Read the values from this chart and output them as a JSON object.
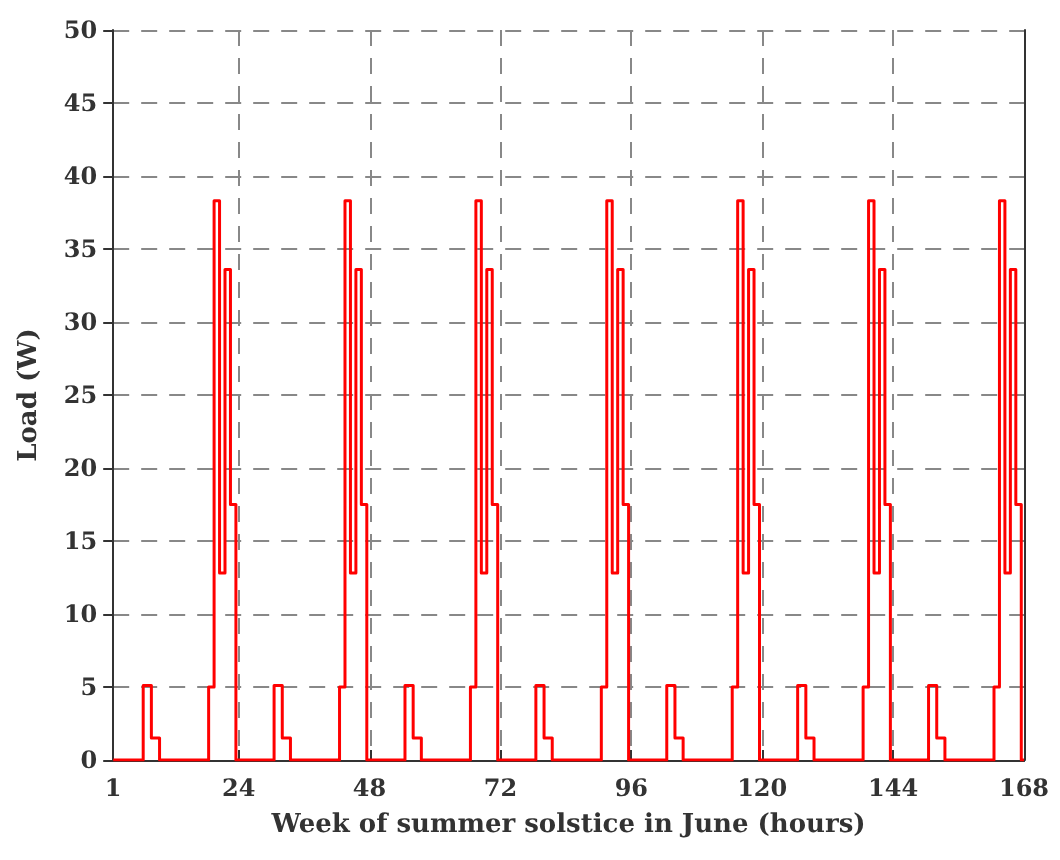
{
  "chart_data": {
    "type": "step",
    "xlabel": "Week of summer solstice in June (hours)",
    "ylabel": "Load (W)",
    "x": [
      1,
      6.5,
      8,
      9.5,
      18.5,
      19.5,
      20.5,
      21.5,
      22.5,
      23.5,
      30.5,
      32,
      33.5,
      42.5,
      43.5,
      44.5,
      45.5,
      46.5,
      47.5,
      54.5,
      56,
      57.5,
      66.5,
      67.5,
      68.5,
      69.5,
      70.5,
      71.5,
      78.5,
      80,
      81.5,
      90.5,
      91.5,
      92.5,
      93.5,
      94.5,
      95.5,
      102.5,
      104,
      105.5,
      114.5,
      115.5,
      116.5,
      117.5,
      118.5,
      119.5,
      126.5,
      128,
      129.5,
      138.5,
      139.5,
      140.5,
      141.5,
      142.5,
      143.5,
      150.5,
      152,
      153.5,
      162.5,
      163.5,
      164.5,
      165.5,
      166.5,
      167.5,
      168
    ],
    "values": [
      0,
      5.1,
      1.5,
      0,
      5,
      38.3,
      12.8,
      33.6,
      17.5,
      0,
      5.1,
      1.5,
      0,
      5,
      38.3,
      12.8,
      33.6,
      17.5,
      0,
      5.1,
      1.5,
      0,
      5,
      38.3,
      12.8,
      33.6,
      17.5,
      0,
      5.1,
      1.5,
      0,
      5,
      38.3,
      12.8,
      33.6,
      17.5,
      0,
      5.1,
      1.5,
      0,
      5,
      38.3,
      12.8,
      33.6,
      17.5,
      0,
      5.1,
      1.5,
      0,
      5,
      38.3,
      12.8,
      33.6,
      17.5,
      0,
      5.1,
      1.5,
      0,
      5,
      38.3,
      12.8,
      33.6,
      17.5,
      0,
      0
    ],
    "color": "#ff0000",
    "xlim": [
      1,
      168
    ],
    "xticks": [
      1,
      24,
      48,
      72,
      96,
      120,
      144,
      168
    ],
    "ylim": [
      0,
      50
    ],
    "yticks": [
      0,
      5,
      10,
      15,
      20,
      25,
      30,
      35,
      40,
      45,
      50
    ],
    "grid": true,
    "marker": "none",
    "line_style": "solid"
  }
}
